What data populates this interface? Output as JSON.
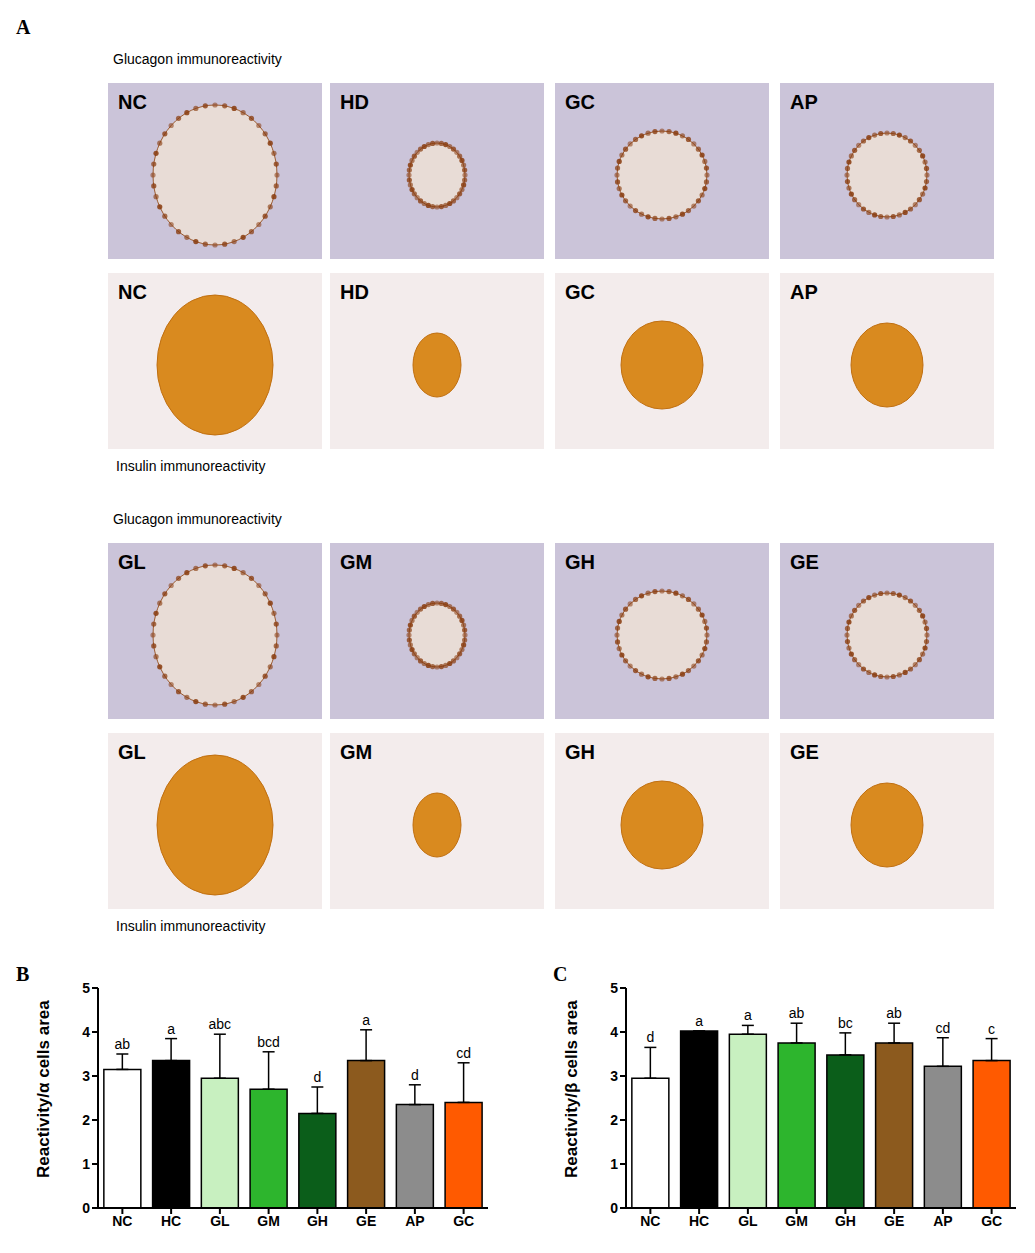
{
  "panel_labels": [
    "A",
    "B",
    "C"
  ],
  "figure_a": {
    "groups": [
      {
        "glucagon_label": "Glucagon immunoreactivity",
        "insulin_label": "Insulin immunoreactivity",
        "tiles": [
          "NC",
          "HD",
          "GC",
          "AP"
        ]
      },
      {
        "glucagon_label": "Glucagon immunoreactivity",
        "insulin_label": "Insulin immunoreactivity",
        "tiles": [
          "GL",
          "GM",
          "GH",
          "GE"
        ]
      }
    ]
  },
  "chart_data": [
    {
      "type": "bar",
      "y_label": "Reactivity/α cells area",
      "categories": [
        "NC",
        "HC",
        "GL",
        "GM",
        "GH",
        "GE",
        "AP",
        "GC"
      ],
      "values": [
        3.15,
        3.35,
        2.95,
        2.7,
        2.15,
        3.35,
        2.35,
        2.4
      ],
      "error": [
        0.35,
        0.5,
        1.0,
        0.85,
        0.6,
        0.7,
        0.45,
        0.9
      ],
      "letters": [
        "ab",
        "a",
        "abc",
        "bcd",
        "d",
        "a",
        "d",
        "cd"
      ],
      "colors": [
        "#ffffff",
        "#000000",
        "#c8f0c0",
        "#2db52d",
        "#0b5e1a",
        "#8c5a1e",
        "#8c8c8c",
        "#ff5a00"
      ],
      "ylim": [
        0,
        5
      ],
      "yticks": [
        0,
        1,
        2,
        3,
        4,
        5
      ],
      "grid": false
    },
    {
      "type": "bar",
      "y_label": "Reactivity/β cells area",
      "categories": [
        "NC",
        "HC",
        "GL",
        "GM",
        "GH",
        "GE",
        "AP",
        "GC"
      ],
      "values": [
        2.95,
        4.02,
        3.95,
        3.75,
        3.48,
        3.75,
        3.22,
        3.35
      ],
      "error": [
        0.7,
        0.0,
        0.2,
        0.45,
        0.5,
        0.45,
        0.65,
        0.5
      ],
      "letters": [
        "d",
        "a",
        "a",
        "ab",
        "bc",
        "ab",
        "cd",
        "c"
      ],
      "colors": [
        "#ffffff",
        "#000000",
        "#c8f0c0",
        "#2db52d",
        "#0b5e1a",
        "#8c5a1e",
        "#8c8c8c",
        "#ff5a00"
      ],
      "ylim": [
        0,
        5
      ],
      "yticks": [
        0,
        1,
        2,
        3,
        4,
        5
      ],
      "grid": false
    }
  ]
}
